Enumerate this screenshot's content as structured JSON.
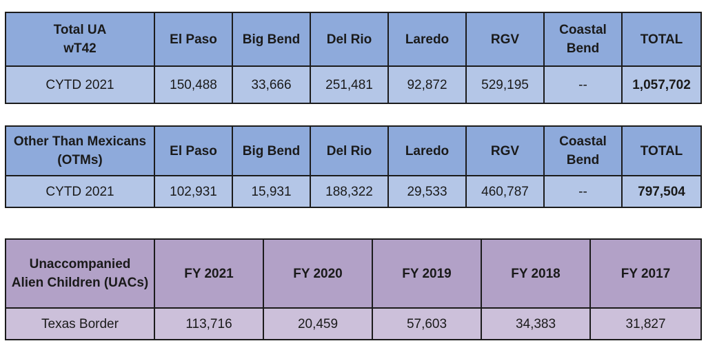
{
  "table1": {
    "headers": [
      "Total UA\nwT42",
      "El Paso",
      "Big Bend",
      "Del Rio",
      "Laredo",
      "RGV",
      "Coastal\nBend",
      "TOTAL"
    ],
    "row": [
      "CYTD 2021",
      "150,488",
      "33,666",
      "251,481",
      "92,872",
      "529,195",
      "--",
      "1,057,702"
    ]
  },
  "table2": {
    "headers": [
      "Other Than Mexicans\n(OTMs)",
      "El Paso",
      "Big Bend",
      "Del Rio",
      "Laredo",
      "RGV",
      "Coastal\nBend",
      "TOTAL"
    ],
    "row": [
      "CYTD 2021",
      "102,931",
      "15,931",
      "188,322",
      "29,533",
      "460,787",
      "--",
      "797,504"
    ]
  },
  "table3": {
    "headers": [
      "Unaccompanied\nAlien Children (UACs)",
      "FY 2021",
      "FY 2020",
      "FY 2019",
      "FY 2018",
      "FY 2017"
    ],
    "row": [
      "Texas Border",
      "113,716",
      "20,459",
      "57,603",
      "34,383",
      "31,827"
    ]
  },
  "colors": {
    "blue_header": "#8eaadb",
    "blue_row": "#b4c6e7",
    "purple_header": "#b2a1c7",
    "purple_row": "#ccc0da"
  }
}
